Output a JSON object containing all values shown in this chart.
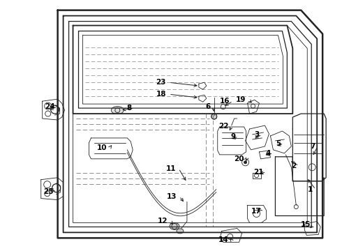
{
  "bg_color": "#ffffff",
  "line_color": "#222222",
  "label_color": "#000000",
  "fig_width": 4.9,
  "fig_height": 3.6,
  "dpi": 100,
  "labels": [
    [
      1,
      449,
      272,
      440,
      255
    ],
    [
      2,
      425,
      238,
      415,
      230
    ],
    [
      3,
      372,
      193,
      363,
      200
    ],
    [
      4,
      388,
      220,
      378,
      223
    ],
    [
      5,
      403,
      206,
      395,
      210
    ],
    [
      6,
      302,
      153,
      307,
      163
    ],
    [
      7,
      452,
      210,
      448,
      225
    ],
    [
      8,
      188,
      155,
      172,
      158
    ],
    [
      9,
      338,
      196,
      330,
      200
    ],
    [
      10,
      153,
      212,
      160,
      208
    ],
    [
      11,
      252,
      242,
      268,
      262
    ],
    [
      12,
      240,
      318,
      250,
      325
    ],
    [
      13,
      253,
      282,
      265,
      292
    ],
    [
      14,
      328,
      345,
      330,
      342
    ],
    [
      15,
      446,
      323,
      443,
      330
    ],
    [
      16,
      330,
      145,
      320,
      153
    ],
    [
      17,
      375,
      303,
      366,
      300
    ],
    [
      18,
      238,
      135,
      286,
      140
    ],
    [
      19,
      353,
      143,
      363,
      150
    ],
    [
      20,
      350,
      228,
      352,
      234
    ],
    [
      21,
      378,
      247,
      370,
      250
    ],
    [
      22,
      328,
      181,
      328,
      190
    ],
    [
      23,
      238,
      118,
      286,
      123
    ],
    [
      24,
      78,
      153,
      68,
      158
    ],
    [
      25,
      76,
      275,
      68,
      270
    ]
  ]
}
